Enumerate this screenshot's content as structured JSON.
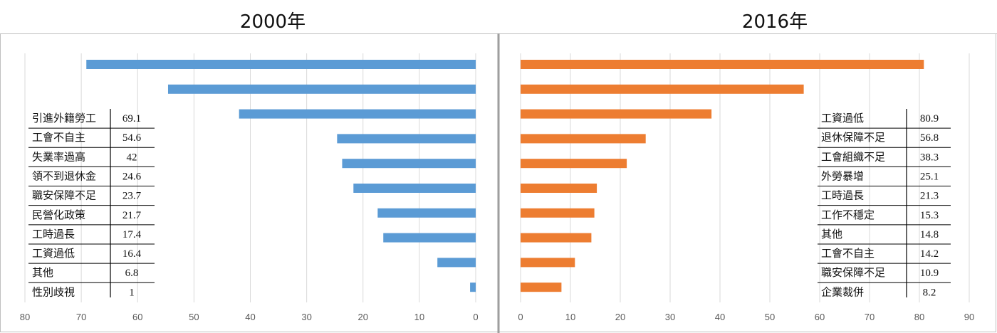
{
  "chart_data": [
    {
      "type": "bar",
      "orientation": "horizontal",
      "direction": "reversed",
      "title": "2000年",
      "xlim": [
        0,
        80
      ],
      "xticks": [
        0,
        10,
        20,
        30,
        40,
        50,
        60,
        70,
        80
      ],
      "color": "#5B9BD5",
      "grid": true,
      "categories": [
        "引進外籍勞工",
        "工會不自主",
        "失業率過高",
        "領不到退休金",
        "職安保障不足",
        "民營化政策",
        "工時過長",
        "工資過低",
        "其他",
        "性別歧視"
      ],
      "values": [
        69.1,
        54.6,
        42,
        24.6,
        23.7,
        21.7,
        17.4,
        16.4,
        6.8,
        1
      ],
      "value_labels": [
        "69.1",
        "54.6",
        "42",
        "24.6",
        "23.7",
        "21.7",
        "17.4",
        "16.4",
        "6.8",
        "1"
      ]
    },
    {
      "type": "bar",
      "orientation": "horizontal",
      "direction": "normal",
      "title": "2016年",
      "xlim": [
        0,
        90
      ],
      "xticks": [
        0,
        10,
        20,
        30,
        40,
        50,
        60,
        70,
        80,
        90
      ],
      "color": "#ED7D31",
      "grid": true,
      "categories": [
        "工資過低",
        "退休保障不足",
        "工會組織不足",
        "外勞暴增",
        "工時過長",
        "工作不穩定",
        "其他",
        "工會不自主",
        "職安保障不足",
        "企業裁併"
      ],
      "values": [
        80.9,
        56.8,
        38.3,
        25.1,
        21.3,
        15.3,
        14.8,
        14.2,
        10.9,
        8.2
      ],
      "value_labels": [
        "80.9",
        "56.8",
        "38.3",
        "25.1",
        "21.3",
        "15.3",
        "14.8",
        "14.2",
        "10.9",
        "8.2"
      ]
    }
  ]
}
